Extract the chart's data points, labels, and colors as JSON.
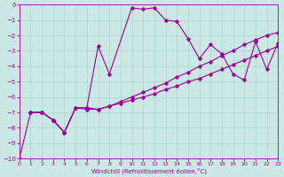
{
  "xlabel": "Windchill (Refroidissement éolien,°C)",
  "xlim": [
    0,
    23
  ],
  "ylim": [
    -10,
    0
  ],
  "xticks": [
    0,
    1,
    2,
    3,
    4,
    5,
    6,
    7,
    8,
    9,
    10,
    11,
    12,
    13,
    14,
    15,
    16,
    17,
    18,
    19,
    20,
    21,
    22,
    23
  ],
  "yticks": [
    0,
    -1,
    -2,
    -3,
    -4,
    -5,
    -6,
    -7,
    -8,
    -9,
    -10
  ],
  "bg_color": "#cce8e4",
  "line_color": "#990099",
  "grid_color": "#aad4ce",
  "curve1": {
    "x": [
      0,
      1,
      2,
      3,
      4,
      5,
      6,
      7,
      8,
      10,
      11,
      12,
      13,
      14,
      15,
      16,
      17,
      18,
      19,
      20,
      21,
      22,
      23
    ],
    "y": [
      -10,
      -7.0,
      -7.0,
      -7.5,
      -8.3,
      -6.7,
      -6.7,
      -2.7,
      -4.5,
      -0.2,
      -0.3,
      -0.2,
      -1.0,
      -1.1,
      -2.2,
      -3.5,
      -2.6,
      -3.2,
      -4.5,
      -4.9,
      -2.4,
      -4.2,
      -2.5
    ]
  },
  "curve2": {
    "x": [
      1,
      2,
      3,
      4,
      5,
      6,
      7,
      8,
      9,
      10,
      11,
      12,
      13,
      14,
      15,
      16,
      17,
      18,
      19,
      20,
      21,
      22,
      23
    ],
    "y": [
      -7.0,
      -7.0,
      -7.5,
      -8.3,
      -6.7,
      -6.7,
      -6.8,
      -6.6,
      -6.4,
      -6.2,
      -6.0,
      -5.8,
      -5.5,
      -5.3,
      -5.0,
      -4.8,
      -4.5,
      -4.2,
      -3.9,
      -3.6,
      -3.3,
      -3.0,
      -2.7
    ]
  },
  "curve3": {
    "x": [
      1,
      2,
      3,
      4,
      5,
      6,
      7,
      8,
      9,
      10,
      11,
      12,
      13,
      14,
      15,
      16,
      17,
      18,
      19,
      20,
      21,
      22,
      23
    ],
    "y": [
      -7.0,
      -7.0,
      -7.5,
      -8.3,
      -6.7,
      -6.8,
      -6.8,
      -6.6,
      -6.3,
      -6.0,
      -5.7,
      -5.4,
      -5.1,
      -4.7,
      -4.4,
      -4.0,
      -3.7,
      -3.3,
      -3.0,
      -2.6,
      -2.3,
      -2.0,
      -1.8
    ]
  }
}
